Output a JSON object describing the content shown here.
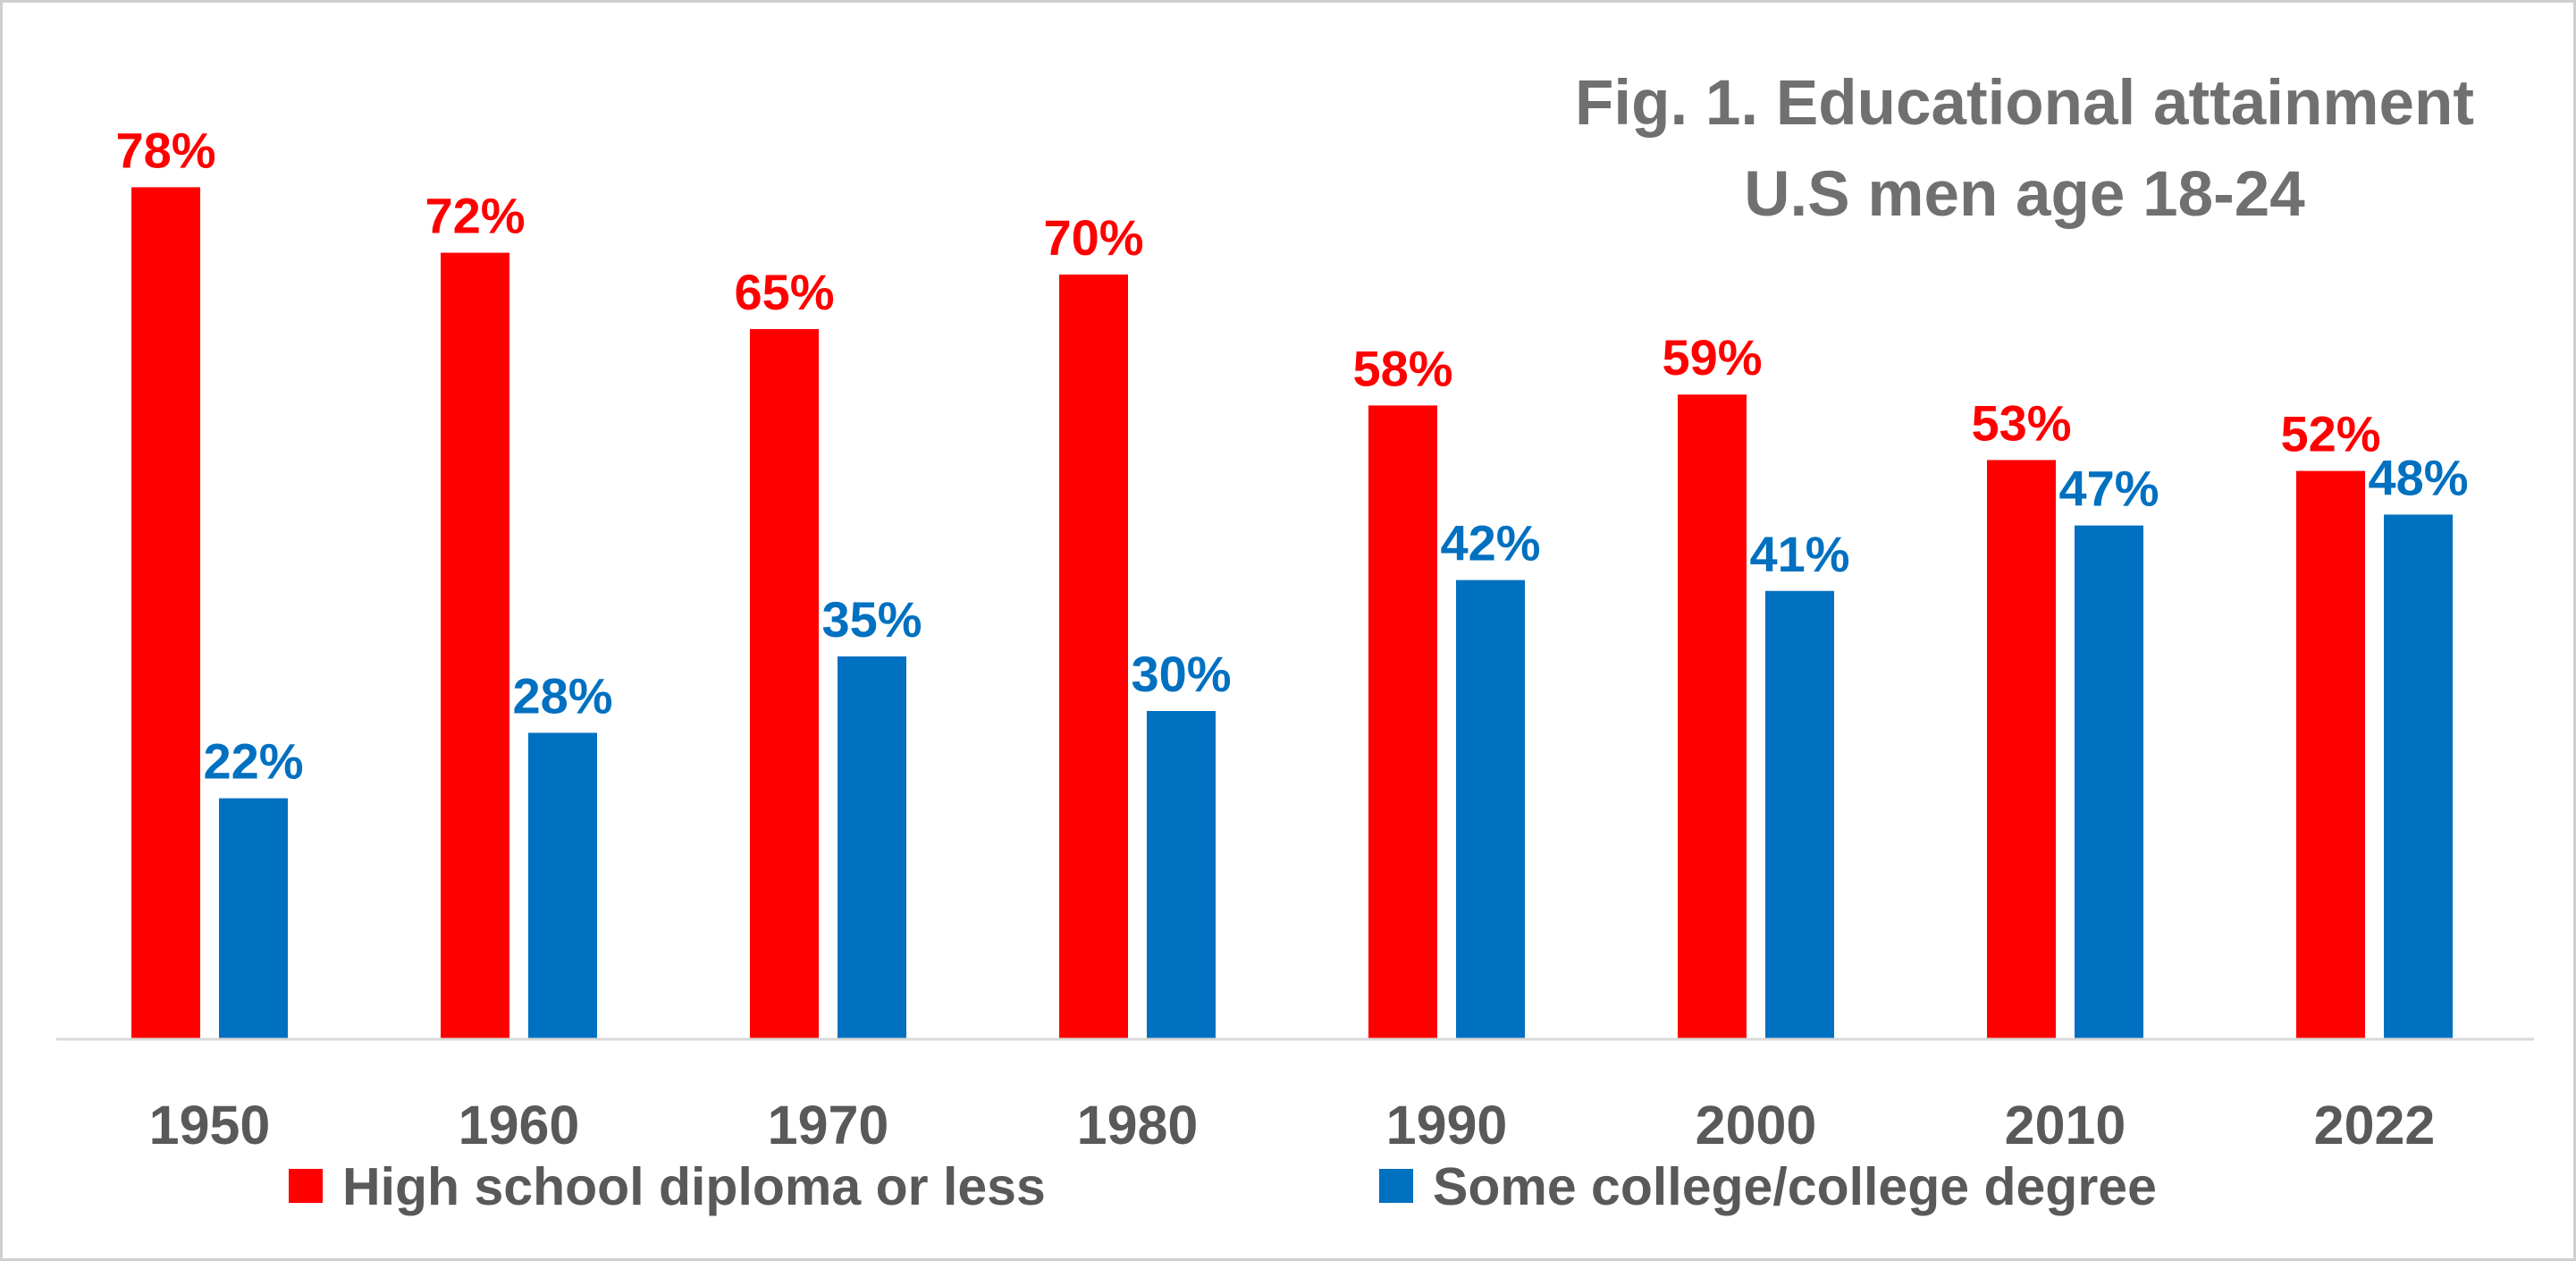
{
  "chart_data": {
    "type": "bar",
    "title": "Fig. 1. Educational attainment",
    "subtitle": "U.S men age 18-24",
    "categories": [
      "1950",
      "1960",
      "1970",
      "1980",
      "1990",
      "2000",
      "2010",
      "2022"
    ],
    "series": [
      {
        "name": "High school diploma or less",
        "color": "#ff0000",
        "values": [
          78,
          72,
          65,
          70,
          58,
          59,
          53,
          52
        ],
        "labels": [
          "78%",
          "72%",
          "65%",
          "70%",
          "58%",
          "59%",
          "53%",
          "52%"
        ]
      },
      {
        "name": "Some college/college degree",
        "color": "#0070c0",
        "values": [
          22,
          28,
          35,
          30,
          42,
          41,
          47,
          48
        ],
        "labels": [
          "22%",
          "28%",
          "35%",
          "30%",
          "42%",
          "41%",
          "47%",
          "48%"
        ]
      }
    ],
    "xlabel": "",
    "ylabel": "",
    "ylim": [
      0,
      100
    ],
    "grid": false,
    "legend_position": "bottom",
    "axis_color": "#d9d9d9"
  }
}
